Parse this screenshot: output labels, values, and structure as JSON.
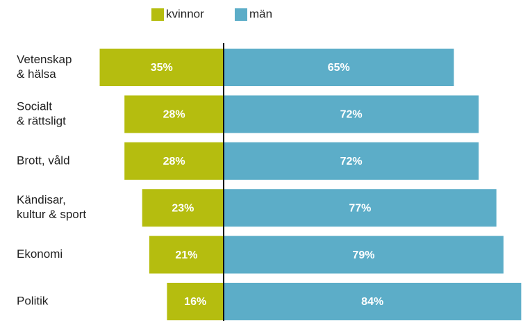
{
  "chart_data": {
    "type": "diverging-bar",
    "categories": [
      [
        "Vetenskap",
        "& hälsa"
      ],
      [
        "Socialt",
        "& rättsligt"
      ],
      [
        "Brott, våld"
      ],
      [
        "Kändisar,",
        "kultur & sport"
      ],
      [
        "Ekonomi"
      ],
      [
        "Politik"
      ]
    ],
    "series": [
      {
        "name": "kvinnor",
        "color": "#b5bd0f",
        "values": [
          35,
          28,
          28,
          23,
          21,
          16
        ],
        "value_labels": [
          "35%",
          "28%",
          "28%",
          "23%",
          "21%",
          "16%"
        ]
      },
      {
        "name": "män",
        "color": "#5cadc8",
        "values": [
          65,
          72,
          72,
          77,
          79,
          84
        ],
        "value_labels": [
          "65%",
          "72%",
          "72%",
          "77%",
          "79%",
          "84%"
        ]
      }
    ]
  }
}
